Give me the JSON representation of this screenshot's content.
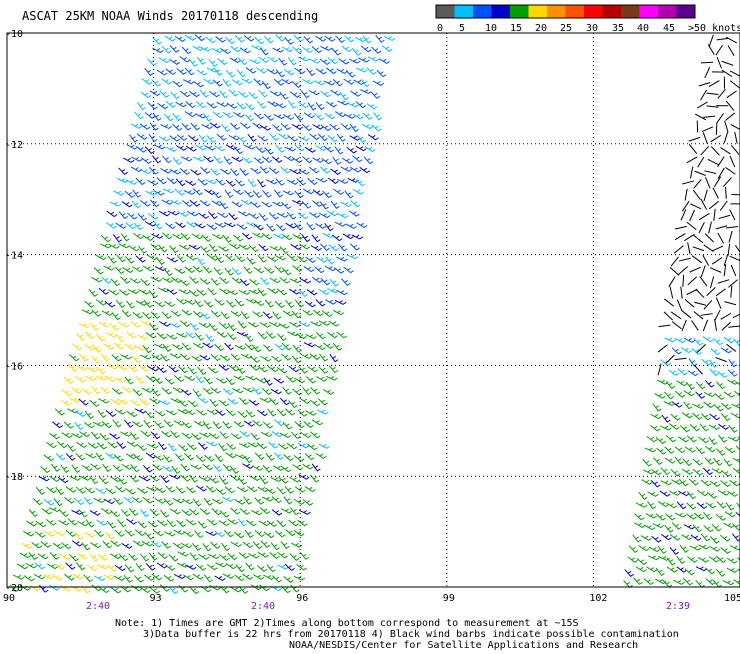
{
  "title": "ASCAT 25KM NOAA Winds 20170118 descending",
  "colorbar": {
    "colors": [
      "#5a5a5a",
      "#00bfff",
      "#0050ff",
      "#0000c8",
      "#00a000",
      "#ffd700",
      "#ff9000",
      "#ff5000",
      "#ff0000",
      "#b40000",
      "#7a3a1a",
      "#ff00ff",
      "#b400b4",
      "#5a008c"
    ],
    "labels": [
      "0",
      "5",
      "10",
      "15",
      "20",
      "25",
      "30",
      "35",
      "40",
      "45",
      ">50 knots"
    ]
  },
  "lat_labels": [
    "-10",
    "-12",
    "-14",
    "-16",
    "-18",
    "-20"
  ],
  "lon_labels": [
    "90",
    "93",
    "96",
    "99",
    "102",
    "105"
  ],
  "times": [
    "2:40",
    "2:40",
    "2:39"
  ],
  "notes": [
    "Note: 1) Times are GMT 2)Times along bottom correspond to measurement at ~15S",
    "3)Data buffer is 22 hrs from 20170118 4) Black wind barbs indicate possible contamination",
    "NOAA/NESDIS/Center for Satellite Applications and Research"
  ],
  "map": {
    "lat_range": [
      -20,
      -10
    ],
    "lon_range": [
      90,
      105
    ],
    "grid": true,
    "swaths": [
      {
        "side": "left",
        "dominant_speeds": [
          "10-15 knots (north)",
          "15-20 knots (south)"
        ],
        "time": "2:40"
      },
      {
        "side": "right",
        "dominant_speeds": [
          "contaminated (north)",
          "15-20 knots (south)"
        ],
        "time": "2:39"
      }
    ]
  }
}
